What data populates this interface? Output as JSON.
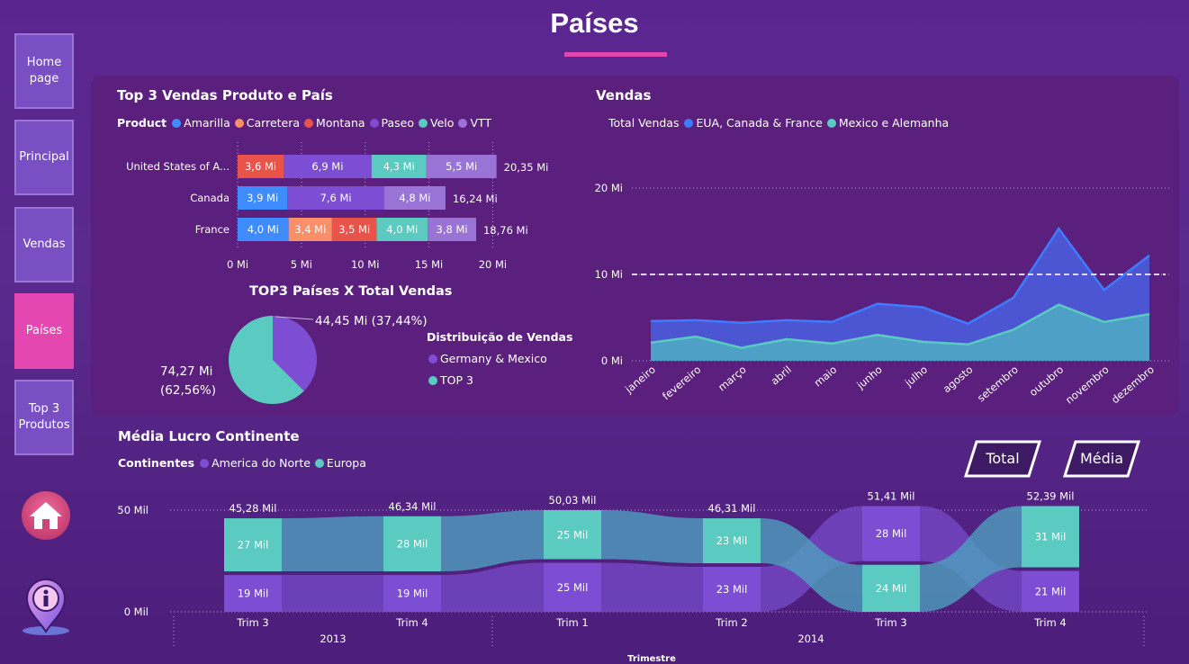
{
  "page": {
    "title": "Países"
  },
  "nav": [
    {
      "label": "Home page"
    },
    {
      "label": "Principal"
    },
    {
      "label": "Vendas"
    },
    {
      "label": "Países"
    },
    {
      "label": "Top 3 Produtos"
    }
  ],
  "colors": {
    "Amarilla": "#3f8cff",
    "Carretera": "#fb8f68",
    "Montana": "#e8534a",
    "Paseo": "#7d4ed3",
    "Velo": "#5bcbc1",
    "VTT": "#9a73d6",
    "accent": "#e447b0"
  },
  "top3": {
    "title": "Top 3 Vendas Produto e País",
    "legend_title": "Product",
    "legend": [
      "Amarilla",
      "Carretera",
      "Montana",
      "Paseo",
      "Velo",
      "VTT"
    ],
    "chart_data": {
      "type": "bar",
      "orientation": "horizontal-stacked",
      "unit": "Mi",
      "xlim": [
        0,
        20
      ],
      "x_ticks": [
        "0 Mi",
        "5 Mi",
        "10 Mi",
        "15 Mi",
        "20 Mi"
      ],
      "rows": [
        {
          "country": "United States of A...",
          "total": "20,35 Mi",
          "segments": [
            {
              "product": "Montana",
              "value": 3.6,
              "label": "3,6 Mi"
            },
            {
              "product": "Paseo",
              "value": 6.9,
              "label": "6,9 Mi"
            },
            {
              "product": "Velo",
              "value": 4.3,
              "label": "4,3 Mi"
            },
            {
              "product": "VTT",
              "value": 5.5,
              "label": "5,5 Mi"
            }
          ]
        },
        {
          "country": "Canada",
          "total": "16,24 Mi",
          "segments": [
            {
              "product": "Amarilla",
              "value": 3.9,
              "label": "3,9 Mi"
            },
            {
              "product": "Paseo",
              "value": 7.6,
              "label": "7,6 Mi"
            },
            {
              "product": "VTT",
              "value": 4.8,
              "label": "4,8 Mi"
            }
          ]
        },
        {
          "country": "France",
          "total": "18,76 Mi",
          "segments": [
            {
              "product": "Amarilla",
              "value": 4.0,
              "label": "4,0 Mi"
            },
            {
              "product": "Carretera",
              "value": 3.4,
              "label": "3,4 Mi"
            },
            {
              "product": "Montana",
              "value": 3.5,
              "label": "3,5 Mi"
            },
            {
              "product": "Velo",
              "value": 4.0,
              "label": "4,0 Mi"
            },
            {
              "product": "VTT",
              "value": 3.8,
              "label": "3,8 Mi"
            }
          ]
        }
      ]
    }
  },
  "pie": {
    "title": "TOP3 Países X Total Vendas",
    "legend_title": "Distribuição de Vendas",
    "chart_data": {
      "type": "pie",
      "slices": [
        {
          "name": "Germany & Mexico",
          "value": 44.45,
          "pct": 37.44,
          "label": "44,45 Mi (37,44%)",
          "color": "#7d4ed3"
        },
        {
          "name": "TOP 3",
          "value": 74.27,
          "pct": 62.56,
          "label_line1": "74,27 Mi",
          "label_line2": "(62,56%)",
          "color": "#5bcbc1"
        }
      ]
    }
  },
  "vendas": {
    "title": "Vendas",
    "legend_title": "Total Vendas",
    "chart_data": {
      "type": "area",
      "categories": [
        "janeiro",
        "fevereiro",
        "março",
        "abril",
        "maio",
        "junho",
        "julho",
        "agosto",
        "setembro",
        "outubro",
        "novembro",
        "dezembro"
      ],
      "series": [
        {
          "name": "EUA, Canada & France",
          "color": "#3f7bff",
          "values": [
            4.6,
            4.7,
            4.4,
            4.7,
            4.5,
            6.6,
            6.2,
            4.3,
            7.3,
            15.3,
            8.2,
            12.2
          ]
        },
        {
          "name": "Mexico e Alemanha",
          "color": "#5bcbc1",
          "values": [
            2.1,
            2.8,
            1.5,
            2.5,
            2.0,
            3.0,
            2.2,
            1.9,
            3.6,
            6.5,
            4.5,
            5.4
          ]
        }
      ],
      "y_ticks": [
        "0 Mi",
        "10 Mi",
        "20 Mi"
      ],
      "ylim": [
        0,
        20
      ],
      "reference_line": 10
    }
  },
  "lucro": {
    "title": "Média Lucro Continente",
    "legend_title": "Continentes",
    "btn_total": "Total",
    "btn_media": "Média",
    "chart_data": {
      "type": "bar",
      "orientation": "ribbon-stacked",
      "unit": "Mil",
      "ylim": [
        0,
        50
      ],
      "y_ticks": [
        "0 Mil",
        "50 Mil"
      ],
      "x_axis_title": "Trimestre",
      "years": [
        "2013",
        "2014"
      ],
      "quarters": [
        "Trim 3",
        "Trim 4",
        "Trim 1",
        "Trim 2",
        "Trim 3",
        "Trim 4"
      ],
      "totals": [
        "45,28 Mil",
        "46,34 Mil",
        "50,03 Mil",
        "46,31 Mil",
        "51,41 Mil",
        "52,39 Mil"
      ],
      "series": [
        {
          "name": "America do Norte",
          "color": "#7d4ed3",
          "values": [
            19,
            19,
            25,
            23,
            28,
            21
          ],
          "labels": [
            "19 Mil",
            "19 Mil",
            "25 Mil",
            "23 Mil",
            "28 Mil",
            "21 Mil"
          ]
        },
        {
          "name": "Europa",
          "color": "#5bcbc1",
          "values": [
            27,
            28,
            25,
            23,
            24,
            31
          ],
          "labels": [
            "27 Mil",
            "28 Mil",
            "25 Mil",
            "23 Mil",
            "24 Mil",
            "31 Mil"
          ]
        }
      ]
    }
  },
  "icons": {
    "home": "home-icon",
    "info": "info-location-icon"
  }
}
